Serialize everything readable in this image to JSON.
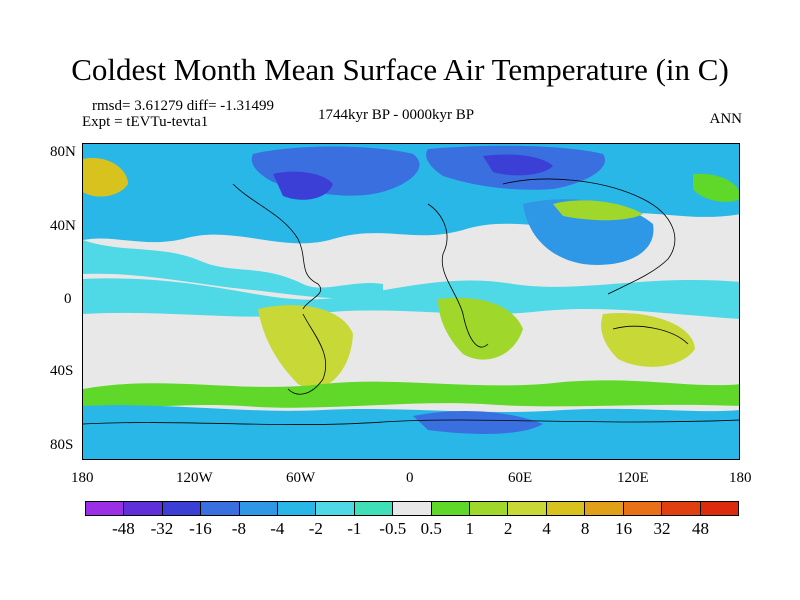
{
  "title": "Coldest Month Mean Surface Air Temperature (in C)",
  "stats": "rmsd= 3.61279 diff= -1.31499",
  "experiment": "Expt = tEVTu-tevta1",
  "period": "1744kyr BP - 0000kyr BP",
  "season": "ANN",
  "lat_labels": [
    "80N",
    "40N",
    "0",
    "40S",
    "80S"
  ],
  "lon_labels": [
    "180",
    "120W",
    "60W",
    "0",
    "60E",
    "120E",
    "180"
  ],
  "colorbar": {
    "labels": [
      "-48",
      "-32",
      "-16",
      "-8",
      "-4",
      "-2",
      "-1",
      "-0.5",
      "0.5",
      "1",
      "2",
      "4",
      "8",
      "16",
      "32",
      "48"
    ],
    "colors": [
      "#9b2fe6",
      "#5f2fd9",
      "#3b3fd6",
      "#3a6fe0",
      "#2f98e6",
      "#29b7e8",
      "#4fd8e6",
      "#3fe0b8",
      "#e8e8e8",
      "#5fd82a",
      "#9fd82a",
      "#c8d836",
      "#d8c21e",
      "#e0a018",
      "#e87018",
      "#e04010",
      "#dc2a0c"
    ]
  },
  "colors": {
    "ocean_neutral": "#e8e8e8",
    "cool_light": "#4fd8e6",
    "cool_mid": "#29b7e8",
    "cool_deep": "#2f98e6",
    "cold": "#3a6fe0",
    "very_cold": "#3b3fd6",
    "warm_light": "#5fd82a",
    "warm_mid": "#9fd82a",
    "warm": "#c8d836",
    "hot": "#d8c21e",
    "coastline": "#000000"
  }
}
